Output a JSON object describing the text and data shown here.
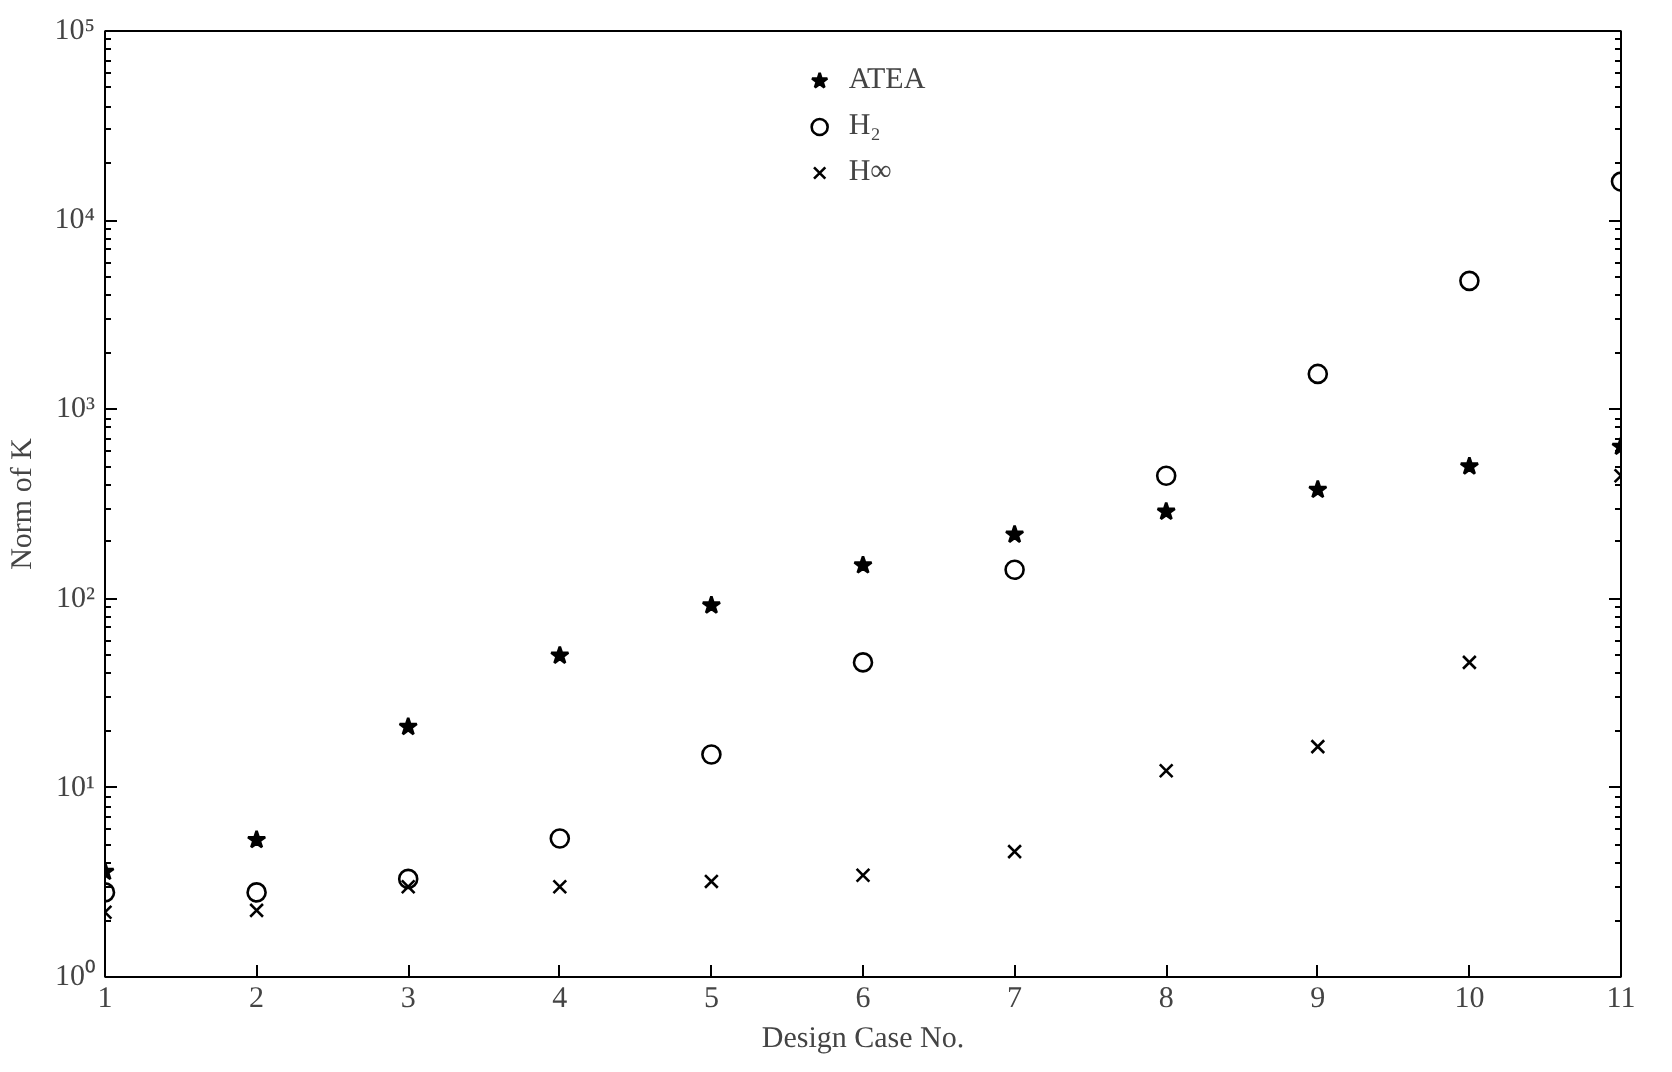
{
  "chart_data": {
    "type": "scatter",
    "xlabel": "Design Case No.",
    "ylabel": "Norm of K",
    "x": [
      1,
      2,
      3,
      4,
      5,
      6,
      7,
      8,
      9,
      10,
      11
    ],
    "series": [
      {
        "name": "ATEA",
        "color": "#000000",
        "marker": "star",
        "values": [
          3.6,
          5.3,
          21,
          50,
          92,
          150,
          218,
          288,
          376,
          500,
          635
        ]
      },
      {
        "name": "H₂",
        "color": "#000000",
        "marker": "circle",
        "values": [
          2.8,
          2.8,
          3.3,
          5.4,
          15,
          46,
          142,
          446,
          1540,
          4780,
          16000
        ]
      },
      {
        "name": "H∞",
        "color": "#000000",
        "marker": "cross",
        "values": [
          2.2,
          2.25,
          3.0,
          3.0,
          3.2,
          3.45,
          4.6,
          12.3,
          16.5,
          46,
          446
        ]
      }
    ],
    "log": "y",
    "xlim": [
      1,
      11
    ],
    "ylim": [
      1,
      100000
    ],
    "xticks": [
      1,
      2,
      3,
      4,
      5,
      6,
      7,
      8,
      9,
      10,
      11
    ],
    "yticks": [
      {
        "value": 1,
        "label": "10⁰"
      },
      {
        "value": 10,
        "label": "10¹"
      },
      {
        "value": 100,
        "label": "10²"
      },
      {
        "value": 1000,
        "label": "10³"
      },
      {
        "value": 10000,
        "label": "10⁴"
      },
      {
        "value": 100000,
        "label": "10⁵"
      }
    ],
    "grid": false,
    "legend": "top"
  }
}
